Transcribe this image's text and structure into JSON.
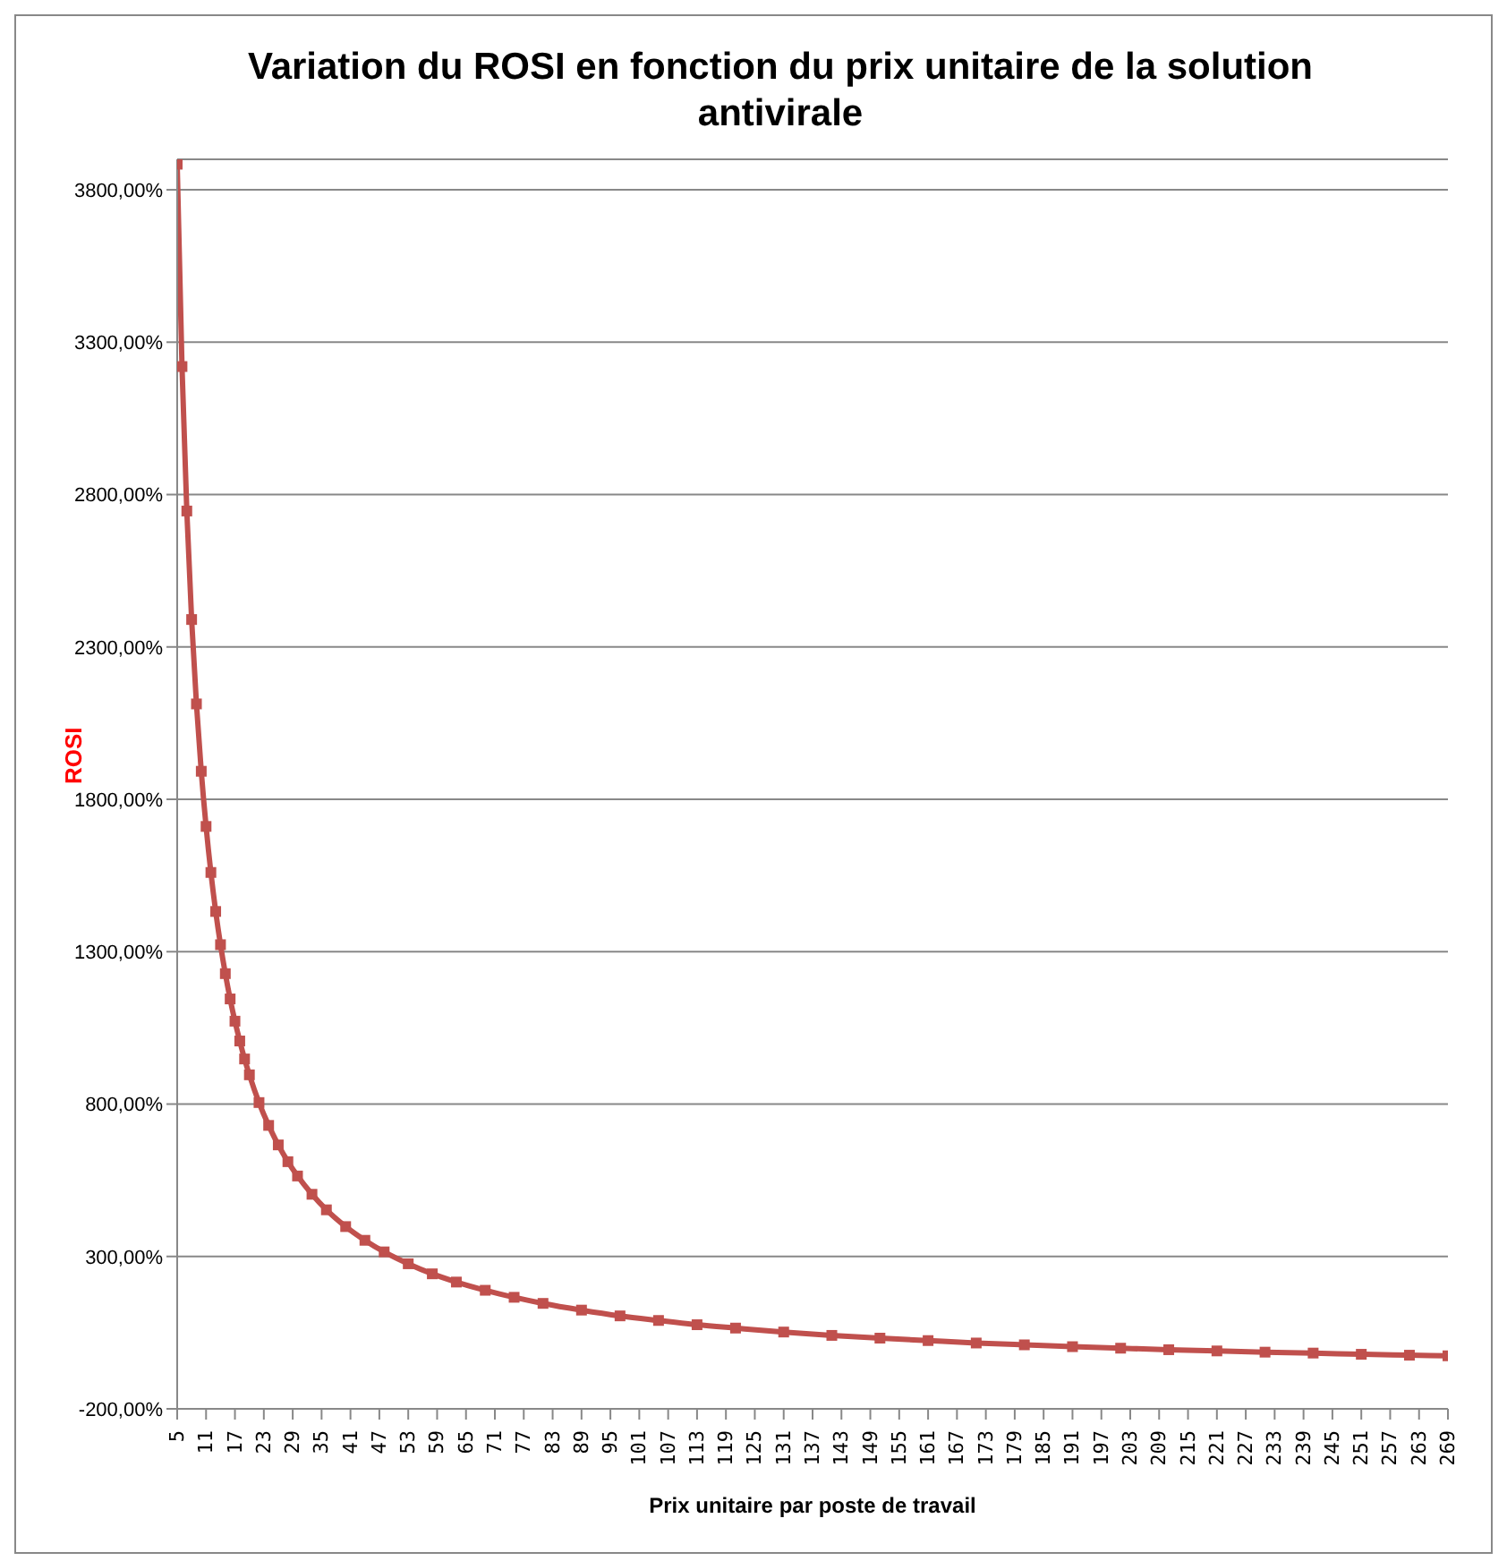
{
  "chart_data": {
    "type": "line",
    "title": "Variation du ROSI en fonction du prix unitaire de la solution antivirale",
    "xlabel": "Prix unitaire par poste de travail",
    "ylabel": "ROSI",
    "series": [
      {
        "color": "#c0504d",
        "x": [
          5,
          6,
          7,
          8,
          9,
          10,
          11,
          12,
          13,
          14,
          15,
          16,
          17,
          18,
          19,
          20,
          22,
          24,
          26,
          28,
          30,
          33,
          36,
          40,
          44,
          48,
          53,
          58,
          63,
          69,
          75,
          81,
          89,
          97,
          105,
          113,
          121,
          131,
          141,
          151,
          161,
          171,
          181,
          191,
          201,
          211,
          221,
          231,
          241,
          251,
          261,
          269
        ],
        "values": [
          3884,
          3220,
          2746,
          2390,
          2113,
          1892,
          1711,
          1560,
          1432,
          1323,
          1228,
          1145,
          1072,
          1007,
          948,
          896,
          805,
          730,
          666,
          611,
          564,
          504,
          453,
          398,
          353,
          315,
          276,
          243,
          216,
          189,
          166,
          146,
          124,
          105,
          90,
          76,
          65,
          52,
          41,
          32,
          24,
          16,
          10,
          4,
          -1,
          -6,
          -10,
          -14,
          -17,
          -21,
          -24,
          -26
        ]
      }
    ],
    "xlim": [
      5,
      269
    ],
    "xticks": [
      5,
      11,
      17,
      23,
      29,
      35,
      41,
      47,
      53,
      59,
      65,
      71,
      77,
      83,
      89,
      95,
      101,
      107,
      113,
      119,
      125,
      131,
      137,
      143,
      149,
      155,
      161,
      167,
      173,
      179,
      185,
      191,
      197,
      203,
      209,
      215,
      221,
      227,
      233,
      239,
      245,
      251,
      257,
      263,
      269
    ],
    "ylim": [
      -200,
      3900
    ],
    "yticks": [
      {
        "value": -200,
        "label": "-200,00%"
      },
      {
        "value": 300,
        "label": "300,00%"
      },
      {
        "value": 800,
        "label": "800,00%"
      },
      {
        "value": 1300,
        "label": "1300,00%"
      },
      {
        "value": 1800,
        "label": "1800,00%"
      },
      {
        "value": 2300,
        "label": "2300,00%"
      },
      {
        "value": 2800,
        "label": "2800,00%"
      },
      {
        "value": 3300,
        "label": "3300,00%"
      },
      {
        "value": 3800,
        "label": "3800,00%"
      }
    ],
    "grid": "y",
    "legend": false,
    "marker": "square",
    "line_style": "solid"
  }
}
